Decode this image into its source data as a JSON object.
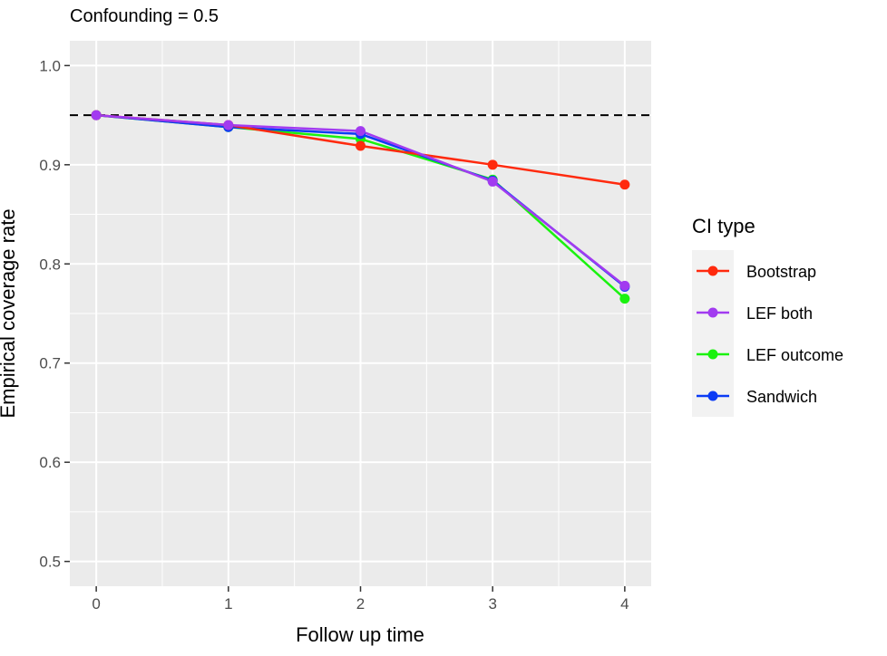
{
  "chart_data": {
    "type": "line",
    "title": "Confounding = 0.5",
    "xlabel": "Follow up time",
    "ylabel": "Empirical coverage rate",
    "x": [
      0,
      1,
      2,
      3,
      4
    ],
    "xlim": [
      -0.2,
      4.2
    ],
    "ylim": [
      0.475,
      1.025
    ],
    "x_ticks": [
      "0",
      "1",
      "2",
      "3",
      "4"
    ],
    "y_ticks": [
      "0.5",
      "0.6",
      "0.7",
      "0.8",
      "0.9",
      "1.0"
    ],
    "reference_line": {
      "y": 0.95,
      "style": "dashed",
      "color": "#000000"
    },
    "grid": true,
    "legend": {
      "title": "CI type",
      "position": "right"
    },
    "series": [
      {
        "name": "Bootstrap",
        "color": "#FF2A0E",
        "values": [
          0.95,
          0.94,
          0.919,
          0.9,
          0.88
        ]
      },
      {
        "name": "LEF both",
        "color": "#A23BF0",
        "values": [
          0.95,
          0.94,
          0.934,
          0.883,
          0.778
        ]
      },
      {
        "name": "LEF outcome",
        "color": "#1AF20F",
        "values": [
          0.95,
          0.938,
          0.926,
          0.885,
          0.765
        ]
      },
      {
        "name": "Sandwich",
        "color": "#0B3BF5",
        "values": [
          0.95,
          0.938,
          0.931,
          0.884,
          0.777
        ]
      }
    ],
    "draw_order": [
      2,
      3,
      0,
      1
    ]
  }
}
